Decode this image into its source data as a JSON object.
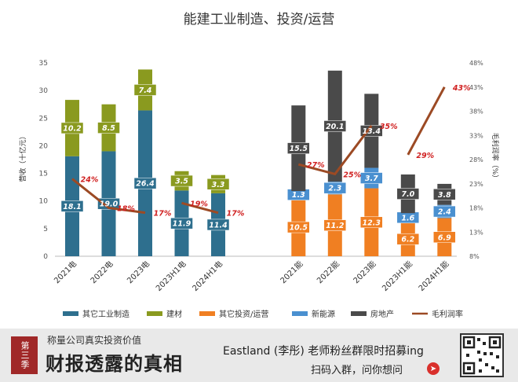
{
  "chart_data": {
    "type": "bar",
    "title": "能建工业制造、投资/运营",
    "ylabel": "营收（十亿元）",
    "y2label": "毛利润率（%）",
    "ylim": [
      0,
      35
    ],
    "y2lim": [
      8,
      48
    ],
    "yticks": [
      0,
      5,
      10,
      15,
      20,
      25,
      30,
      35
    ],
    "y2ticks": [
      "8%",
      "13%",
      "18%",
      "23%",
      "28%",
      "33%",
      "38%",
      "43%",
      "48%"
    ],
    "groups": [
      {
        "categories": [
          "2021电",
          "2022电",
          "2023电",
          "2023H1电",
          "2024H1电"
        ],
        "series": [
          {
            "name": "其它工业制造",
            "color": "#2e6f8e",
            "values": [
              18.1,
              19.0,
              26.4,
              11.9,
              11.4
            ]
          },
          {
            "name": "建材",
            "color": "#8a9a1f",
            "values": [
              10.2,
              8.5,
              7.4,
              3.5,
              3.3
            ]
          }
        ],
        "margin": [
          24,
          18,
          17,
          19,
          17
        ],
        "margin_labels": [
          "24%",
          "18%",
          "17%",
          "19%",
          "17%"
        ]
      },
      {
        "categories": [
          "2021能",
          "2022能",
          "2023能",
          "2023H1能",
          "2024H1能"
        ],
        "series": [
          {
            "name": "其它投资/运营",
            "color": "#f07f22",
            "values": [
              10.5,
              11.2,
              12.3,
              6.2,
              6.9
            ]
          },
          {
            "name": "新能源",
            "color": "#4a90d0",
            "values": [
              1.3,
              2.3,
              3.7,
              1.6,
              2.4
            ]
          },
          {
            "name": "房地产",
            "color": "#4a4a4a",
            "values": [
              15.5,
              20.1,
              13.4,
              7.0,
              3.8
            ]
          }
        ],
        "margin": [
          27,
          25,
          35,
          29,
          43
        ],
        "margin_labels": [
          "27%",
          "25%",
          "35%",
          "29%",
          "43%"
        ]
      }
    ],
    "legend": [
      {
        "name": "其它工业制造",
        "color": "#2e6f8e",
        "kind": "bar"
      },
      {
        "name": "建材",
        "color": "#8a9a1f",
        "kind": "bar"
      },
      {
        "name": "其它投资/运营",
        "color": "#f07f22",
        "kind": "bar"
      },
      {
        "name": "新能源",
        "color": "#4a90d0",
        "kind": "bar"
      },
      {
        "name": "房地产",
        "color": "#4a4a4a",
        "kind": "bar"
      },
      {
        "name": "毛利润率",
        "color": "#9c4a24",
        "kind": "line"
      }
    ],
    "margin_line_color": "#9c4a24",
    "margin_label_color": "#d02020",
    "legend_position": "bottom"
  },
  "footer": {
    "season_badge": "第三季",
    "slogan": "称量公司真实投资价值",
    "brand": "财报透露的真相",
    "promo": "Eastland (李彤) 老师粉丝群限时招募ing",
    "cta": "扫码入群，问你想问"
  }
}
